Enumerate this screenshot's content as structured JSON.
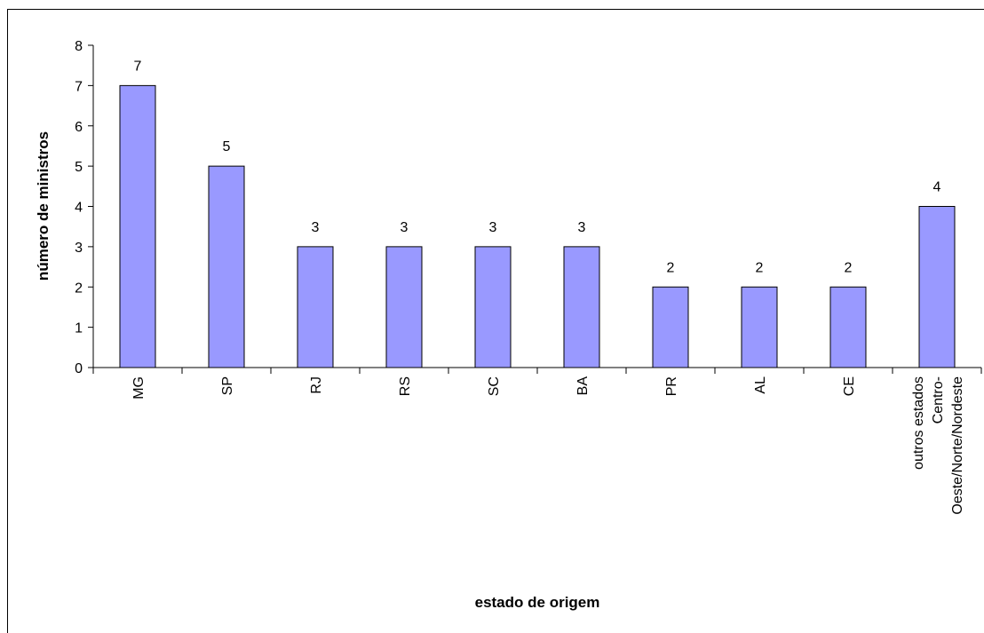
{
  "chart_data": {
    "type": "bar",
    "categories": [
      "MG",
      "SP",
      "RJ",
      "RS",
      "SC",
      "BA",
      "PR",
      "AL",
      "CE",
      "outros estados Centro-Oeste/Norte/Nordeste"
    ],
    "values": [
      7,
      5,
      3,
      3,
      3,
      3,
      2,
      2,
      2,
      4
    ],
    "color": "#9999ff",
    "ylim": [
      0,
      8
    ],
    "yticks": [
      0,
      1,
      2,
      3,
      4,
      5,
      6,
      7,
      8
    ],
    "xlabel": "estado de origem",
    "ylabel": "número de ministros"
  }
}
